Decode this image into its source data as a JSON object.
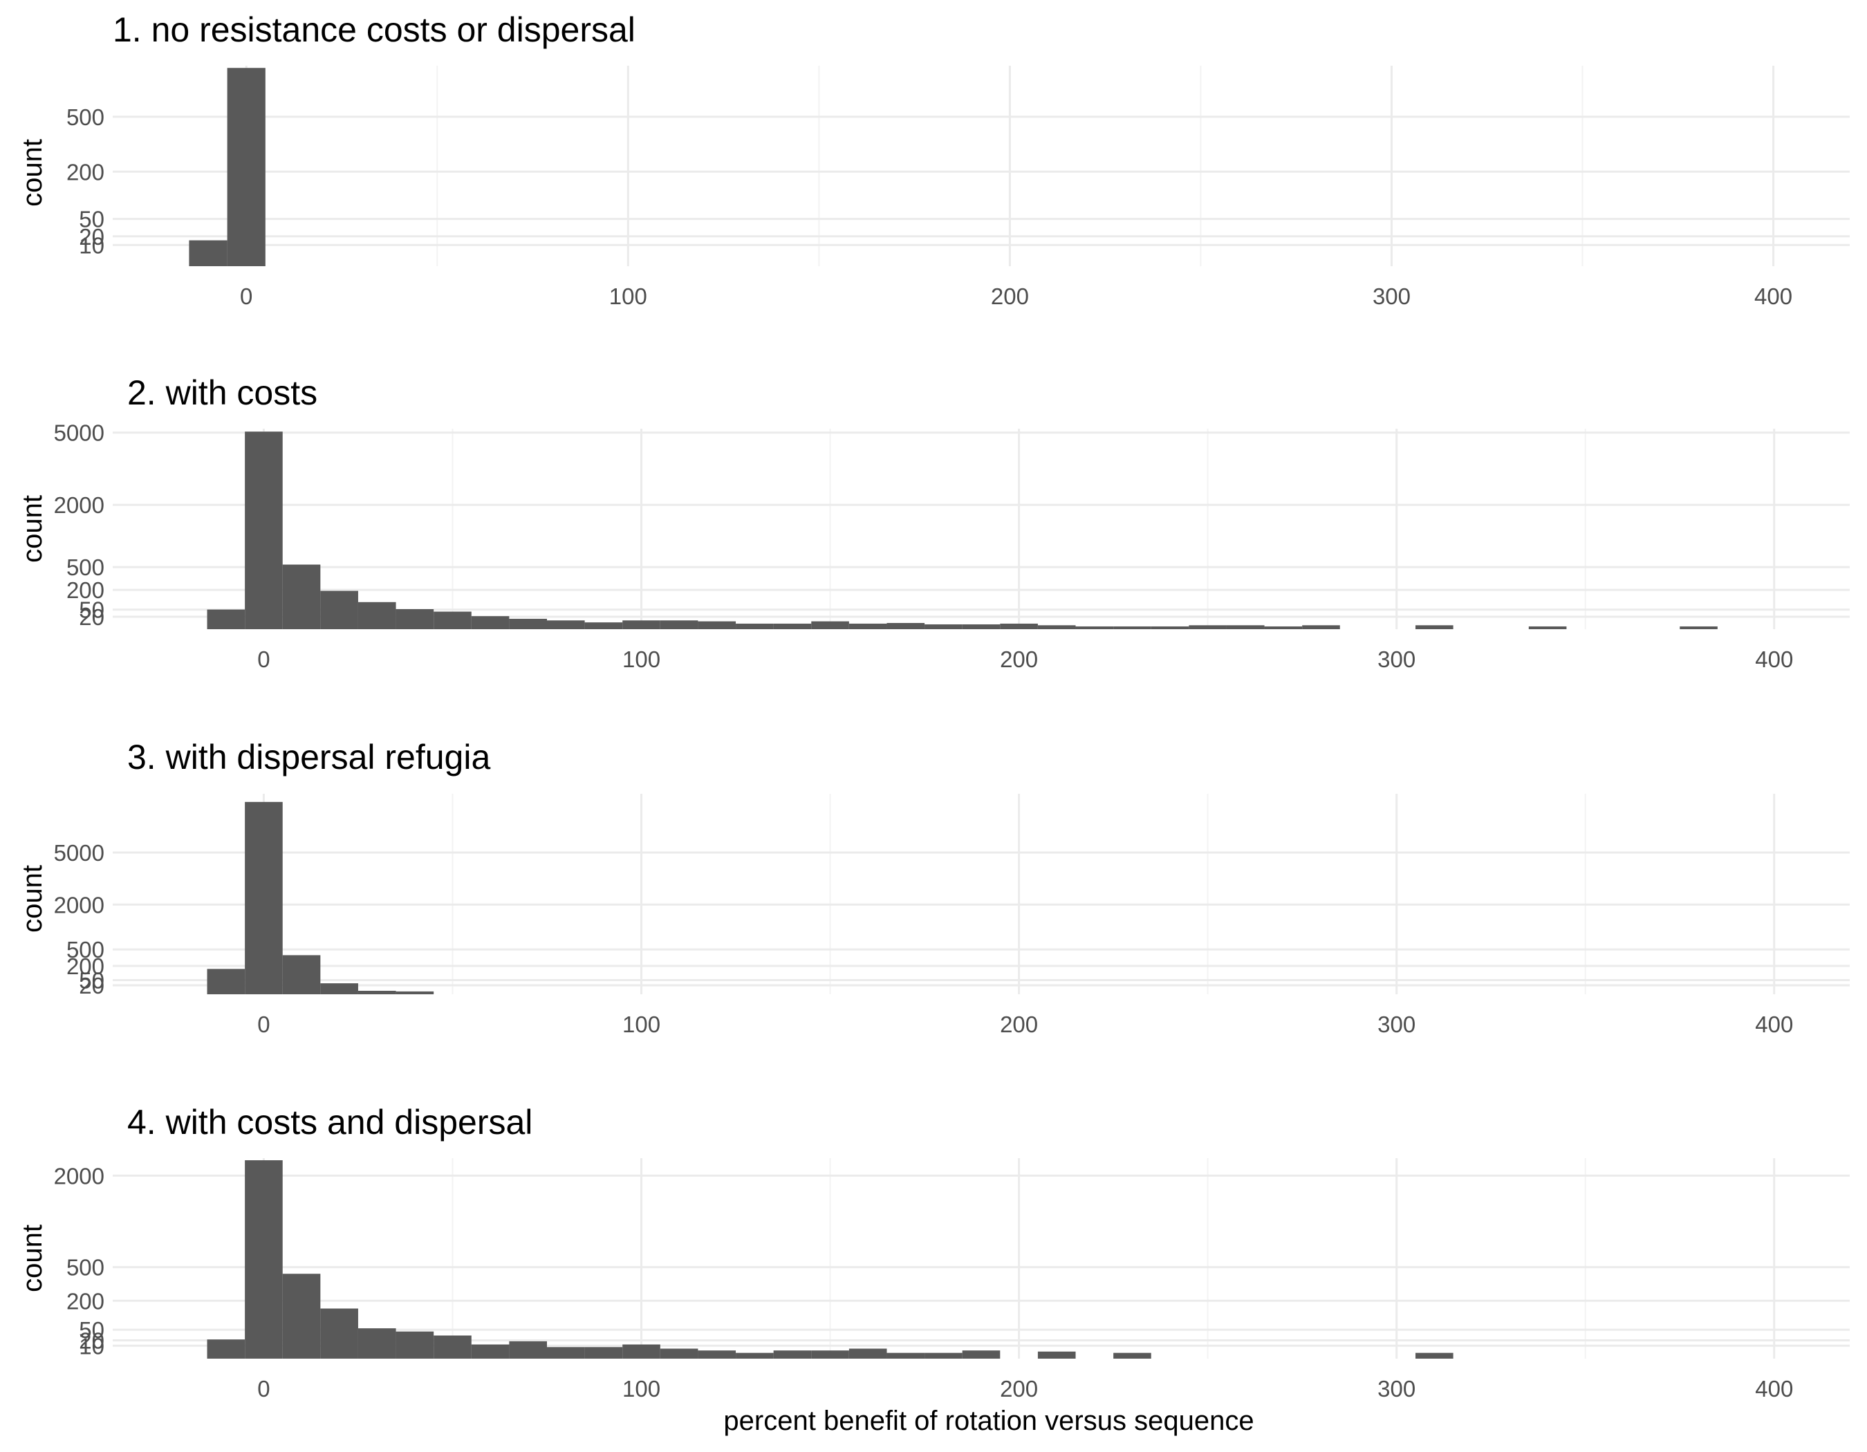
{
  "chart_data": [
    {
      "type": "bar",
      "title": "1. no resistance costs or dispersal",
      "ylabel": "count",
      "y_scale": "sqrt",
      "xlim": [
        -35,
        420
      ],
      "x_ticks": [
        0,
        100,
        200,
        300,
        400
      ],
      "y_ticks": [
        10,
        20,
        50,
        200,
        500
      ],
      "ylim": [
        0,
        900
      ],
      "bin_width": 10,
      "bins": [
        {
          "x0": -15,
          "x1": -5,
          "count": 15
        },
        {
          "x0": -5,
          "x1": 5,
          "count": 880
        }
      ]
    },
    {
      "type": "bar",
      "title": "2. with costs",
      "ylabel": "count",
      "y_scale": "sqrt",
      "xlim": [
        -40,
        420
      ],
      "x_ticks": [
        0,
        100,
        200,
        300,
        400
      ],
      "y_ticks": [
        20,
        50,
        200,
        500,
        2000,
        5000
      ],
      "ylim": [
        0,
        5200
      ],
      "bin_width": 10,
      "bins": [
        {
          "x0": -15,
          "x1": -5,
          "count": 50
        },
        {
          "x0": -5,
          "x1": 5,
          "count": 5050
        },
        {
          "x0": 5,
          "x1": 15,
          "count": 540
        },
        {
          "x0": 15,
          "x1": 25,
          "count": 190
        },
        {
          "x0": 25,
          "x1": 35,
          "count": 95
        },
        {
          "x0": 35,
          "x1": 45,
          "count": 52
        },
        {
          "x0": 45,
          "x1": 55,
          "count": 40
        },
        {
          "x0": 55,
          "x1": 65,
          "count": 22
        },
        {
          "x0": 65,
          "x1": 75,
          "count": 14
        },
        {
          "x0": 75,
          "x1": 85,
          "count": 10
        },
        {
          "x0": 85,
          "x1": 95,
          "count": 6
        },
        {
          "x0": 95,
          "x1": 105,
          "count": 10
        },
        {
          "x0": 105,
          "x1": 115,
          "count": 10
        },
        {
          "x0": 115,
          "x1": 125,
          "count": 8
        },
        {
          "x0": 125,
          "x1": 135,
          "count": 4
        },
        {
          "x0": 135,
          "x1": 145,
          "count": 4
        },
        {
          "x0": 145,
          "x1": 155,
          "count": 8
        },
        {
          "x0": 155,
          "x1": 165,
          "count": 4
        },
        {
          "x0": 165,
          "x1": 175,
          "count": 5
        },
        {
          "x0": 175,
          "x1": 185,
          "count": 3
        },
        {
          "x0": 185,
          "x1": 195,
          "count": 3
        },
        {
          "x0": 195,
          "x1": 205,
          "count": 4
        },
        {
          "x0": 205,
          "x1": 215,
          "count": 2
        },
        {
          "x0": 215,
          "x1": 225,
          "count": 1
        },
        {
          "x0": 225,
          "x1": 235,
          "count": 1
        },
        {
          "x0": 235,
          "x1": 245,
          "count": 1
        },
        {
          "x0": 245,
          "x1": 255,
          "count": 2
        },
        {
          "x0": 255,
          "x1": 265,
          "count": 2
        },
        {
          "x0": 265,
          "x1": 275,
          "count": 1
        },
        {
          "x0": 275,
          "x1": 285,
          "count": 2
        },
        {
          "x0": 305,
          "x1": 315,
          "count": 2
        },
        {
          "x0": 335,
          "x1": 345,
          "count": 1
        },
        {
          "x0": 375,
          "x1": 385,
          "count": 1
        }
      ]
    },
    {
      "type": "bar",
      "title": "3. with dispersal refugia",
      "ylabel": "count",
      "y_scale": "sqrt",
      "xlim": [
        -40,
        420
      ],
      "x_ticks": [
        0,
        100,
        200,
        300,
        400
      ],
      "y_ticks": [
        20,
        50,
        200,
        500,
        2000,
        5000
      ],
      "ylim": [
        0,
        10000
      ],
      "bin_width": 10,
      "bins": [
        {
          "x0": -15,
          "x1": -5,
          "count": 160
        },
        {
          "x0": -5,
          "x1": 5,
          "count": 9200
        },
        {
          "x0": 5,
          "x1": 15,
          "count": 380
        },
        {
          "x0": 15,
          "x1": 25,
          "count": 30
        },
        {
          "x0": 25,
          "x1": 35,
          "count": 3
        },
        {
          "x0": 35,
          "x1": 45,
          "count": 2
        }
      ]
    },
    {
      "type": "bar",
      "title": "4. with costs and dispersal",
      "xlabel": "percent benefit of rotation versus sequence",
      "ylabel": "count",
      "y_scale": "sqrt",
      "xlim": [
        -40,
        420
      ],
      "x_ticks": [
        0,
        100,
        200,
        300,
        400
      ],
      "y_ticks": [
        10,
        20,
        50,
        200,
        500,
        2000
      ],
      "ylim": [
        0,
        2400
      ],
      "bin_width": 10,
      "bins": [
        {
          "x0": -15,
          "x1": -5,
          "count": 22
        },
        {
          "x0": -5,
          "x1": 5,
          "count": 2350
        },
        {
          "x0": 5,
          "x1": 15,
          "count": 430
        },
        {
          "x0": 15,
          "x1": 25,
          "count": 150
        },
        {
          "x0": 25,
          "x1": 35,
          "count": 55
        },
        {
          "x0": 35,
          "x1": 45,
          "count": 44
        },
        {
          "x0": 45,
          "x1": 55,
          "count": 32
        },
        {
          "x0": 55,
          "x1": 65,
          "count": 12
        },
        {
          "x0": 65,
          "x1": 75,
          "count": 18
        },
        {
          "x0": 75,
          "x1": 85,
          "count": 8
        },
        {
          "x0": 85,
          "x1": 95,
          "count": 8
        },
        {
          "x0": 95,
          "x1": 105,
          "count": 12
        },
        {
          "x0": 105,
          "x1": 115,
          "count": 6
        },
        {
          "x0": 115,
          "x1": 125,
          "count": 4
        },
        {
          "x0": 125,
          "x1": 135,
          "count": 2
        },
        {
          "x0": 135,
          "x1": 145,
          "count": 4
        },
        {
          "x0": 145,
          "x1": 155,
          "count": 4
        },
        {
          "x0": 155,
          "x1": 165,
          "count": 6
        },
        {
          "x0": 165,
          "x1": 175,
          "count": 2
        },
        {
          "x0": 175,
          "x1": 185,
          "count": 2
        },
        {
          "x0": 185,
          "x1": 195,
          "count": 4
        },
        {
          "x0": 205,
          "x1": 215,
          "count": 3
        },
        {
          "x0": 225,
          "x1": 235,
          "count": 2
        },
        {
          "x0": 305,
          "x1": 315,
          "count": 2
        }
      ]
    }
  ],
  "colors": {
    "bar": "#595959",
    "grid_major": "#ebebeb",
    "grid_minor": "#f3f3f3",
    "tick_text": "#4d4d4d",
    "title_text": "#000000",
    "background": "#ffffff"
  }
}
